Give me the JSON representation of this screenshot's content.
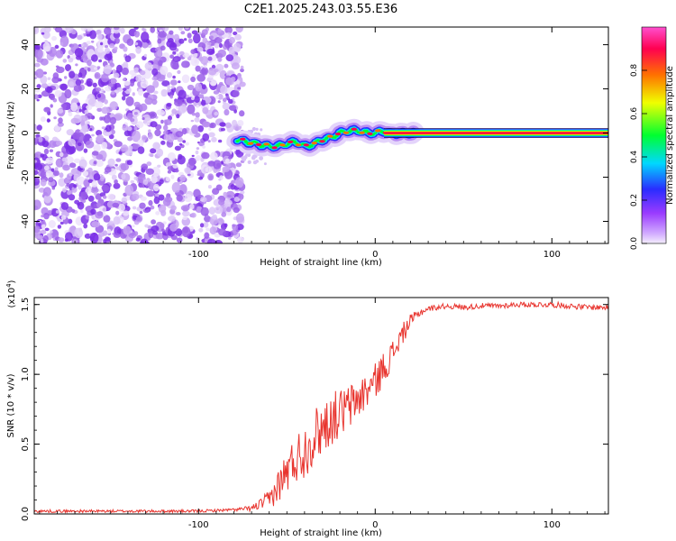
{
  "chart_data": [
    {
      "type": "heatmap",
      "title": "C2E1.2025.243.03.55.E36",
      "xlabel": "Height of straight line (km)",
      "ylabel": "Frequency (Hz)",
      "xlim": [
        -193,
        132
      ],
      "ylim": [
        -50,
        48
      ],
      "x_ticks": [
        -100,
        0,
        100
      ],
      "y_ticks": [
        -40,
        -20,
        0,
        20,
        40
      ],
      "x_tick_labels": [
        "-100",
        "0",
        "100"
      ],
      "y_tick_labels": [
        "-40",
        "-20",
        "0",
        "20",
        "40"
      ],
      "noise_region_x": [
        -193,
        -75
      ],
      "signal_track": {
        "x": [
          -78,
          -72,
          -66,
          -60,
          -55,
          -50,
          -45,
          -40,
          -35,
          -30,
          -25,
          -20,
          -15,
          -10,
          -5,
          0,
          5,
          10,
          15,
          20,
          40,
          60,
          80,
          100,
          120,
          132
        ],
        "frequency": [
          -3,
          -4,
          -5,
          -6,
          -6,
          -5,
          -4,
          -6,
          -5,
          -3,
          -2,
          0,
          1,
          1,
          0,
          0,
          1,
          0,
          0,
          0,
          0,
          0,
          0,
          0,
          0,
          0
        ]
      },
      "colorbar": {
        "label": "Normalized spectral amplitude",
        "range": [
          0.0,
          1.0
        ],
        "ticks": [
          0.0,
          0.2,
          0.4,
          0.6,
          0.8
        ],
        "tick_labels": [
          "0.0",
          "0.2",
          "0.4",
          "0.6",
          "0.8"
        ]
      },
      "colors": {
        "noise": "#7a2ee6",
        "colormap": [
          "#f4eefc",
          "#9a3bff",
          "#2a2cff",
          "#00d8ff",
          "#00ff30",
          "#f0ff00",
          "#ff7000",
          "#ff0050",
          "#ff4fd0"
        ]
      }
    },
    {
      "type": "line",
      "title": "",
      "xlabel": "Height of straight line (km)",
      "ylabel": "SNR (10 * v/v)",
      "y_multiplier": "(x10",
      "y_multiplier_exp": "4",
      "y_multiplier_close": ")",
      "xlim": [
        -193,
        132
      ],
      "ylim": [
        0.0,
        1.55
      ],
      "x_ticks": [
        -100,
        0,
        100
      ],
      "y_ticks": [
        0.0,
        0.5,
        1.0,
        1.5
      ],
      "x_tick_labels": [
        "-100",
        "0",
        "100"
      ],
      "y_tick_labels": [
        "0.0",
        "0.5",
        "1.0",
        "1.5"
      ],
      "series": [
        {
          "name": "SNR",
          "color": "#e8342e",
          "x": [
            -193,
            -150,
            -100,
            -80,
            -70,
            -65,
            -60,
            -55,
            -50,
            -45,
            -40,
            -35,
            -30,
            -25,
            -20,
            -15,
            -10,
            -5,
            0,
            5,
            10,
            15,
            20,
            25,
            30,
            35,
            40,
            50,
            60,
            70,
            80,
            90,
            100,
            110,
            120,
            132
          ],
          "y": [
            0.02,
            0.02,
            0.02,
            0.03,
            0.04,
            0.07,
            0.1,
            0.2,
            0.3,
            0.4,
            0.45,
            0.55,
            0.62,
            0.68,
            0.72,
            0.76,
            0.82,
            0.88,
            0.95,
            1.05,
            1.15,
            1.28,
            1.38,
            1.44,
            1.47,
            1.48,
            1.49,
            1.48,
            1.49,
            1.49,
            1.5,
            1.5,
            1.5,
            1.49,
            1.48,
            1.48
          ],
          "noise_amplitude": [
            0.01,
            0.01,
            0.01,
            0.01,
            0.02,
            0.04,
            0.07,
            0.12,
            0.16,
            0.18,
            0.2,
            0.2,
            0.2,
            0.19,
            0.18,
            0.17,
            0.15,
            0.14,
            0.13,
            0.12,
            0.1,
            0.08,
            0.05,
            0.03,
            0.02,
            0.02,
            0.02,
            0.02,
            0.02,
            0.02,
            0.02,
            0.02,
            0.02,
            0.02,
            0.02,
            0.02
          ]
        }
      ]
    }
  ]
}
